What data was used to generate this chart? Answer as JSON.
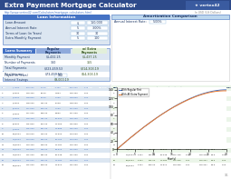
{
  "title": "Extra Payment Mortgage Calculator",
  "title_bg": "#2D4A8A",
  "title_color": "#FFFFFF",
  "subtitle_color": "#4472C4",
  "logo_bg": "#3A5BA0",
  "logo_text": "vertex42",
  "light_blue_bg": "#DCE6F1",
  "medium_blue": "#4472C4",
  "table_header_bg": "#8EA9DB",
  "table_row_alt": "#DCE6F1",
  "orange": "#ED7D31",
  "blue_line": "#4472C4",
  "green_bg": "#E2EFDA",
  "green_dark": "#375623",
  "gray_header_bg": "#BDD7EE",
  "body_bg": "#FFFFFF",
  "chart_title_bg": "#BDD7EE",
  "right_table_header_bg": "#C6EFCE",
  "right_row_alt": "#EBF5E9"
}
